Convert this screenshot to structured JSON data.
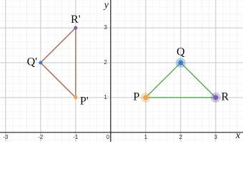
{
  "chart_data": {
    "type": "polygon",
    "xlabel": "x",
    "ylabel": "y",
    "xlim": [
      -3.16,
      3.78
    ],
    "ylim": [
      -0.27,
      3.8
    ],
    "xticks": [
      -3,
      -2,
      -1,
      0,
      1,
      2,
      3
    ],
    "yticks": [
      1,
      2,
      3
    ],
    "grid": true,
    "shapes": [
      {
        "color": "#b86a55",
        "points": [
          {
            "label": "P'",
            "x": -1,
            "y": 1,
            "color": "#f2a24a"
          },
          {
            "label": "Q'",
            "x": -2,
            "y": 2,
            "color": "#3b7fc4"
          },
          {
            "label": "R'",
            "x": -1,
            "y": 3,
            "color": "#7b5bb5"
          }
        ]
      },
      {
        "color": "#5cae5c",
        "points": [
          {
            "label": "P",
            "x": 1,
            "y": 1,
            "color": "#f2a24a"
          },
          {
            "label": "Q",
            "x": 2,
            "y": 2,
            "color": "#3b7fc4"
          },
          {
            "label": "R",
            "x": 3,
            "y": 1,
            "color": "#7b5bb5"
          }
        ]
      }
    ]
  }
}
